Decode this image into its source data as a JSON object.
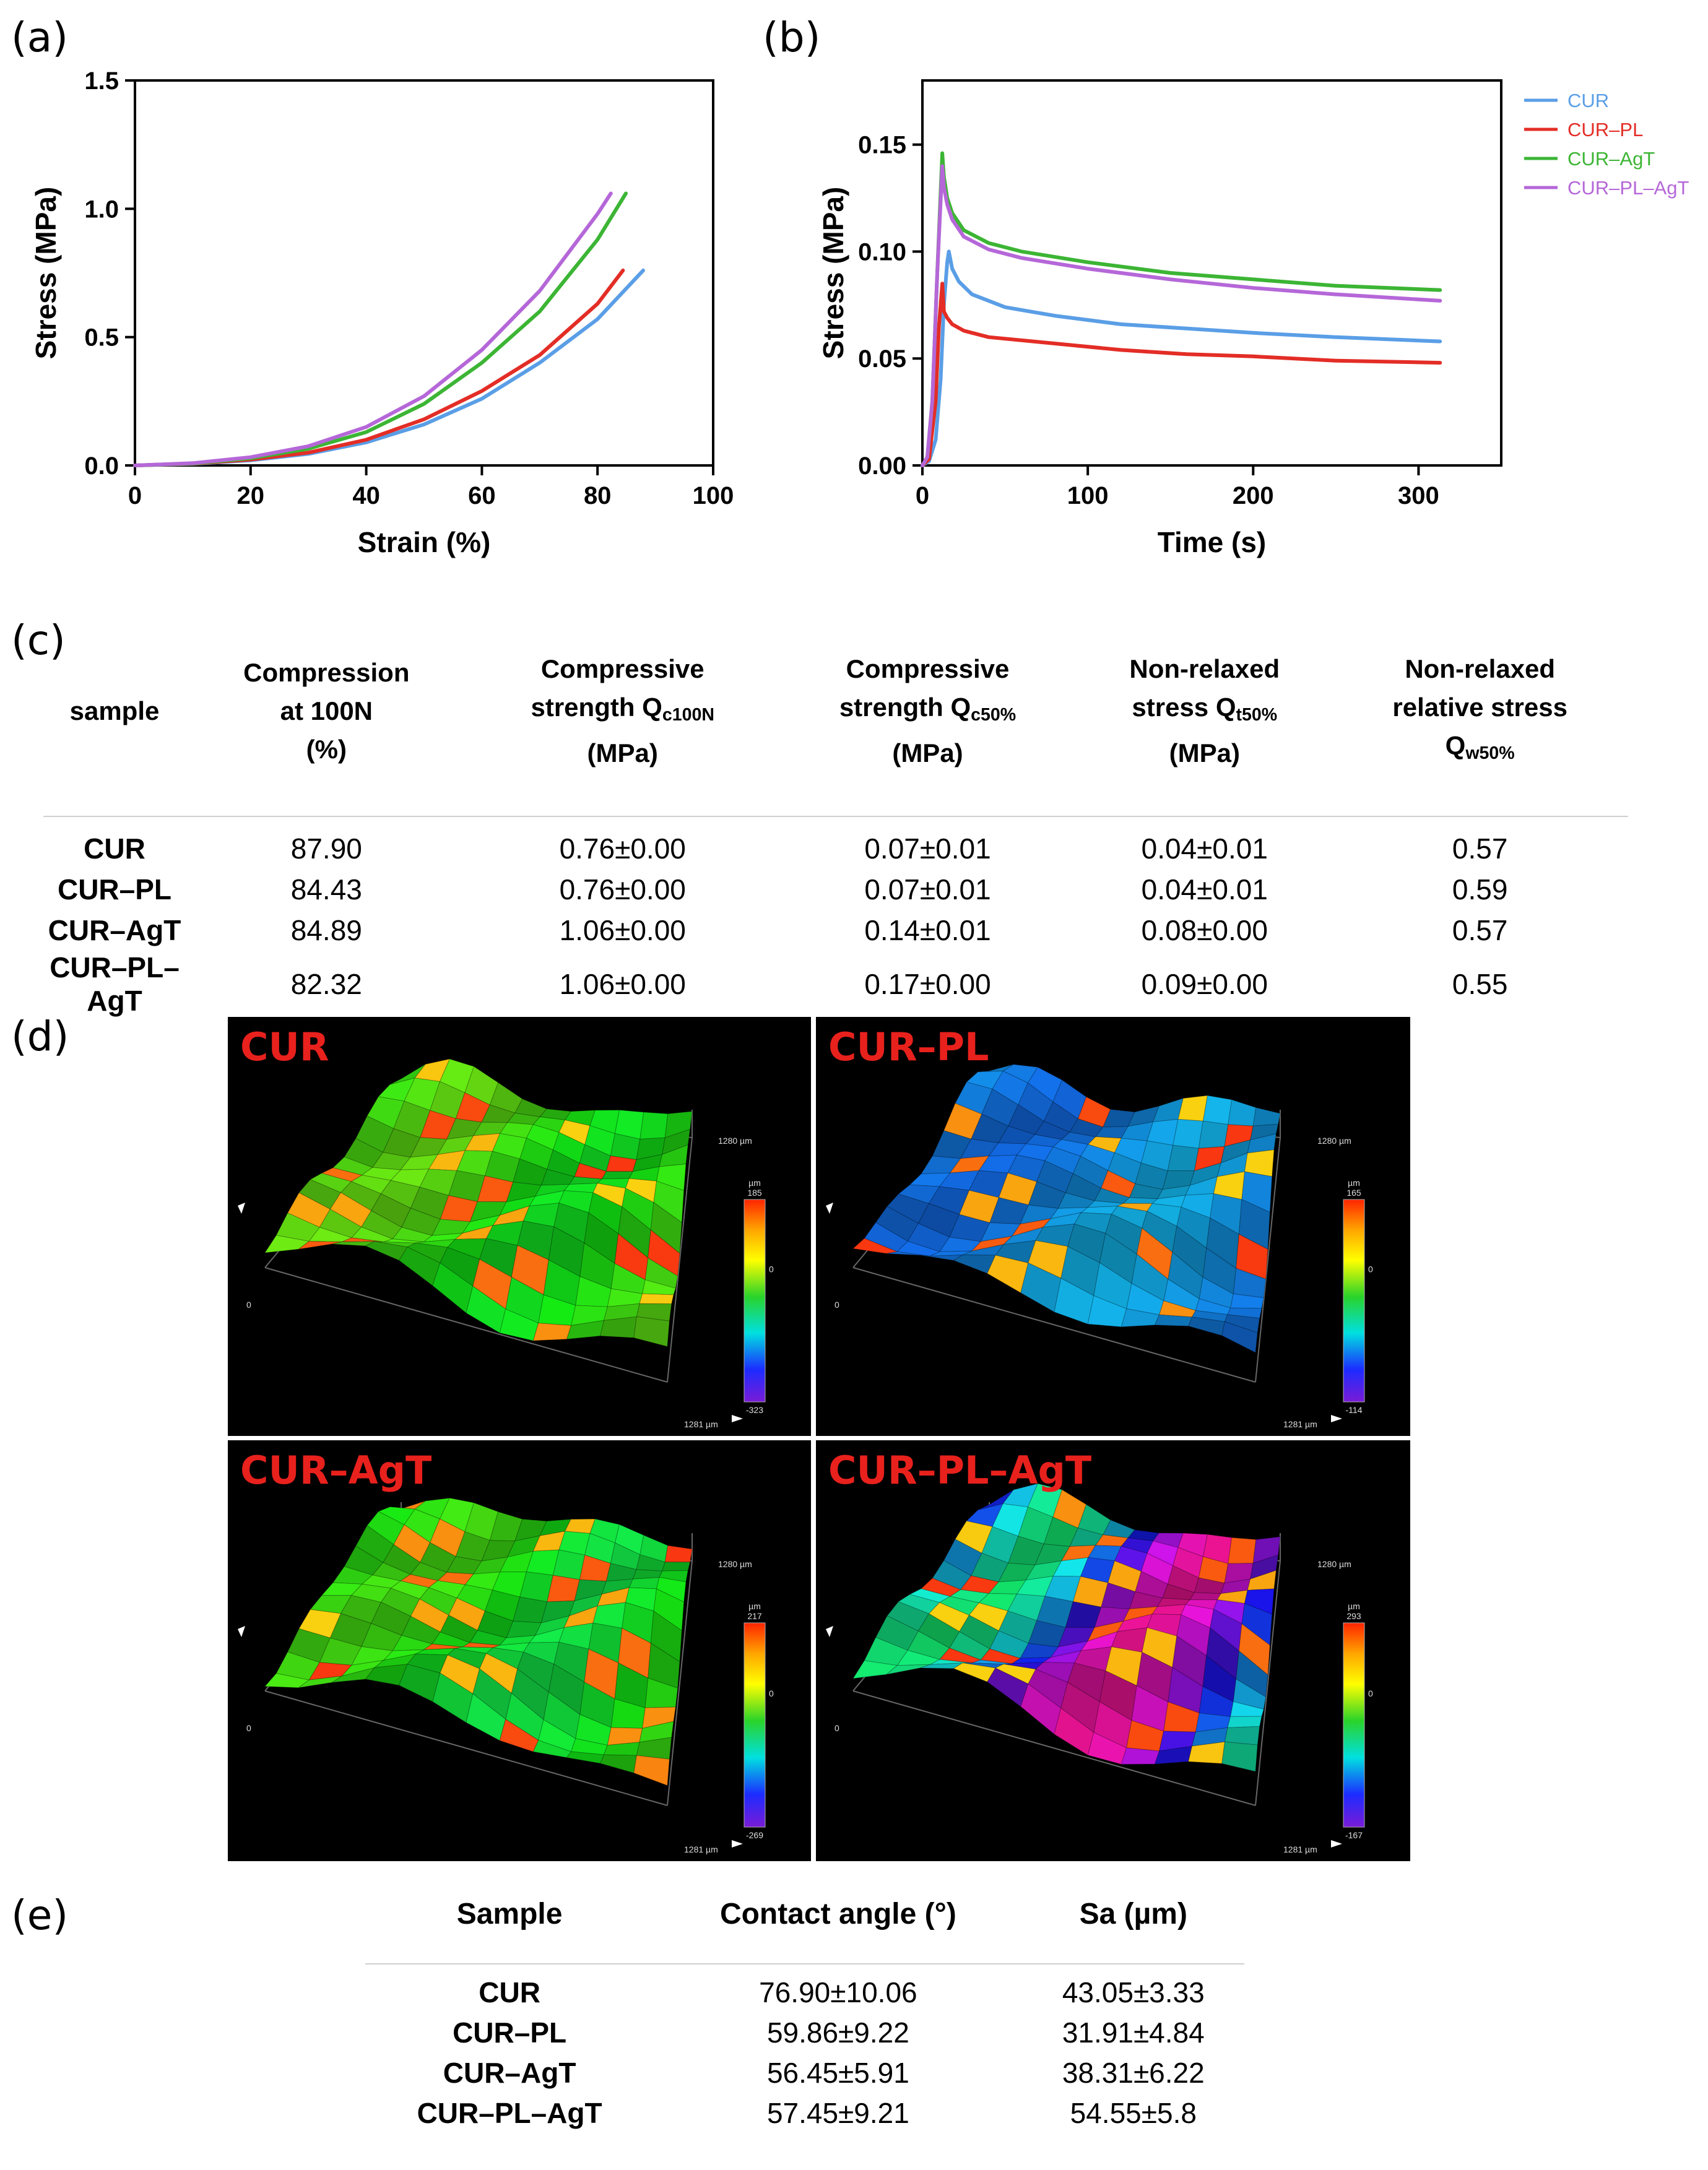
{
  "panel_labels": {
    "a": "(a)",
    "b": "(b)",
    "c": "(c)",
    "d": "(d)",
    "e": "(e)"
  },
  "chart_data": [
    {
      "id": "a",
      "type": "line",
      "title": "",
      "xlabel": "Strain (%)",
      "ylabel": "Stress (MPa)",
      "xlim": [
        0,
        100
      ],
      "ylim": [
        0,
        1.5
      ],
      "xticks": [
        0,
        20,
        40,
        60,
        80,
        100
      ],
      "yticks": [
        0.0,
        0.5,
        1.0,
        1.5
      ],
      "ytick_labels": [
        "0.0",
        "0.5",
        "1.0",
        "1.5"
      ],
      "grid": false,
      "series": [
        {
          "name": "CUR",
          "color": "#5a9ee6",
          "x": [
            0,
            10,
            20,
            30,
            40,
            50,
            60,
            70,
            80,
            87.9
          ],
          "y": [
            0,
            0.006,
            0.02,
            0.045,
            0.09,
            0.16,
            0.26,
            0.4,
            0.57,
            0.76
          ]
        },
        {
          "name": "CUR–PL",
          "color": "#e32d26",
          "x": [
            0,
            10,
            20,
            30,
            40,
            50,
            60,
            70,
            80,
            84.4
          ],
          "y": [
            0,
            0.007,
            0.023,
            0.05,
            0.1,
            0.18,
            0.29,
            0.43,
            0.63,
            0.76
          ]
        },
        {
          "name": "CUR–AgT",
          "color": "#3cb534",
          "x": [
            0,
            10,
            20,
            30,
            40,
            50,
            60,
            70,
            80,
            84.9
          ],
          "y": [
            0,
            0.008,
            0.028,
            0.065,
            0.13,
            0.24,
            0.4,
            0.6,
            0.88,
            1.06
          ]
        },
        {
          "name": "CUR–PL–AgT",
          "color": "#b567d8",
          "x": [
            0,
            10,
            20,
            30,
            40,
            50,
            60,
            70,
            80,
            82.3
          ],
          "y": [
            0,
            0.009,
            0.032,
            0.075,
            0.15,
            0.27,
            0.45,
            0.68,
            0.98,
            1.06
          ]
        }
      ]
    },
    {
      "id": "b",
      "type": "line",
      "title": "",
      "xlabel": "Time (s)",
      "ylabel": "Stress (MPa)",
      "xlim": [
        0,
        350
      ],
      "ylim": [
        0,
        0.18
      ],
      "xticks": [
        0,
        100,
        200,
        300
      ],
      "yticks": [
        0.0,
        0.05,
        0.1,
        0.15
      ],
      "ytick_labels": [
        "0.00",
        "0.05",
        "0.10",
        "0.15"
      ],
      "grid": false,
      "legend_position": "top-right outside",
      "series": [
        {
          "name": "CUR",
          "color": "#5a9ee6",
          "x": [
            0,
            4,
            8,
            11,
            13,
            15,
            16,
            18,
            22,
            30,
            50,
            80,
            120,
            160,
            200,
            250,
            313
          ],
          "y": [
            0,
            0.002,
            0.012,
            0.04,
            0.075,
            0.095,
            0.1,
            0.092,
            0.086,
            0.08,
            0.074,
            0.07,
            0.066,
            0.064,
            0.062,
            0.06,
            0.058
          ]
        },
        {
          "name": "CUR–PL",
          "color": "#e32d26",
          "x": [
            0,
            4,
            8,
            10,
            12,
            13,
            15,
            18,
            25,
            40,
            80,
            120,
            160,
            200,
            250,
            313
          ],
          "y": [
            0,
            0.003,
            0.03,
            0.065,
            0.085,
            0.072,
            0.069,
            0.066,
            0.063,
            0.06,
            0.057,
            0.054,
            0.052,
            0.051,
            0.049,
            0.048
          ]
        },
        {
          "name": "CUR–AgT",
          "color": "#3cb534",
          "x": [
            0,
            3,
            6,
            9,
            12,
            13,
            15,
            18,
            25,
            40,
            60,
            100,
            150,
            200,
            250,
            313
          ],
          "y": [
            0,
            0.004,
            0.03,
            0.09,
            0.146,
            0.135,
            0.125,
            0.118,
            0.11,
            0.104,
            0.1,
            0.095,
            0.09,
            0.087,
            0.084,
            0.082
          ]
        },
        {
          "name": "CUR–PL–AgT",
          "color": "#b567d8",
          "x": [
            0,
            3,
            6,
            9,
            12,
            13,
            15,
            18,
            25,
            40,
            60,
            100,
            150,
            200,
            250,
            313
          ],
          "y": [
            0,
            0.004,
            0.03,
            0.09,
            0.14,
            0.13,
            0.122,
            0.115,
            0.107,
            0.101,
            0.097,
            0.092,
            0.087,
            0.083,
            0.08,
            0.077
          ]
        }
      ]
    }
  ],
  "table_c": {
    "headers": [
      [
        "sample"
      ],
      [
        "Compression",
        "at 100N",
        "(%)"
      ],
      [
        "Compressive",
        "strength Q",
        "c100N",
        "(MPa)"
      ],
      [
        "Compressive",
        "strength Q",
        "c50%",
        "(MPa)"
      ],
      [
        "Non-relaxed",
        "stress Q",
        "t50%",
        "(MPa)"
      ],
      [
        "Non-relaxed",
        "relative stress",
        "Q",
        "w50%"
      ]
    ],
    "rows": [
      [
        "CUR",
        "87.90",
        "0.76±0.00",
        "0.07±0.01",
        "0.04±0.01",
        "0.57"
      ],
      [
        "CUR–PL",
        "84.43",
        "0.76±0.00",
        "0.07±0.01",
        "0.04±0.01",
        "0.59"
      ],
      [
        "CUR–AgT",
        "84.89",
        "1.06±0.00",
        "0.14±0.01",
        "0.08±0.00",
        "0.57"
      ],
      [
        "CUR–PL–AgT",
        "82.32",
        "1.06±0.00",
        "0.17±0.00",
        "0.09±0.00",
        "0.55"
      ]
    ]
  },
  "images_d": [
    {
      "sample": "CUR",
      "max": "185",
      "zero": "0",
      "min": "-323",
      "axis_y": "1280 µm",
      "axis_x": "1281 µm",
      "unit": "µm",
      "origin": "0"
    },
    {
      "sample": "CUR–PL",
      "max": "165",
      "zero": "0",
      "min": "-114",
      "axis_y": "1280 µm",
      "axis_x": "1281 µm",
      "unit": "µm",
      "origin": "0"
    },
    {
      "sample": "CUR–AgT",
      "max": "217",
      "zero": "0",
      "min": "-269",
      "axis_y": "1280 µm",
      "axis_x": "1281 µm",
      "unit": "µm",
      "origin": "0"
    },
    {
      "sample": "CUR–PL–AgT",
      "max": "293",
      "zero": "0",
      "min": "-167",
      "axis_y": "1280 µm",
      "axis_x": "1281 µm",
      "unit": "µm",
      "origin": "0"
    }
  ],
  "table_e": {
    "headers": [
      "Sample",
      "Contact angle (°)",
      "Sa (µm)"
    ],
    "rows": [
      [
        "CUR",
        "76.90±10.06",
        "43.05±3.33"
      ],
      [
        "CUR–PL",
        "59.86±9.22",
        "31.91±4.84"
      ],
      [
        "CUR–AgT",
        "56.45±5.91",
        "38.31±6.22"
      ],
      [
        "CUR–PL–AgT",
        "57.45±9.21",
        "54.55±5.8"
      ]
    ]
  }
}
